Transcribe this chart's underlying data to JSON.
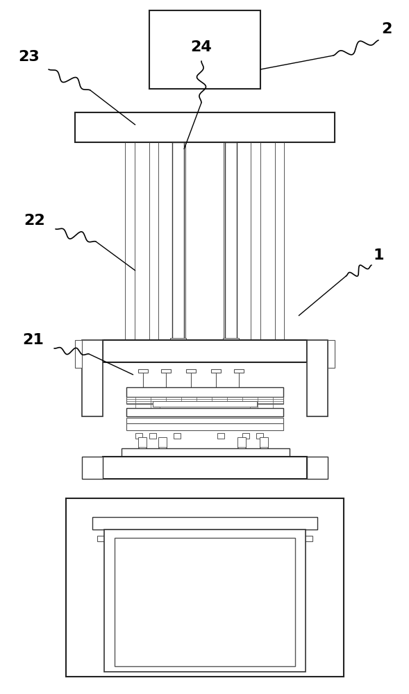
{
  "bg_color": "#ffffff",
  "lc": "#555555",
  "lc_d": "#333333",
  "lc_b": "#222222",
  "fig_width": 5.89,
  "fig_height": 10.0
}
